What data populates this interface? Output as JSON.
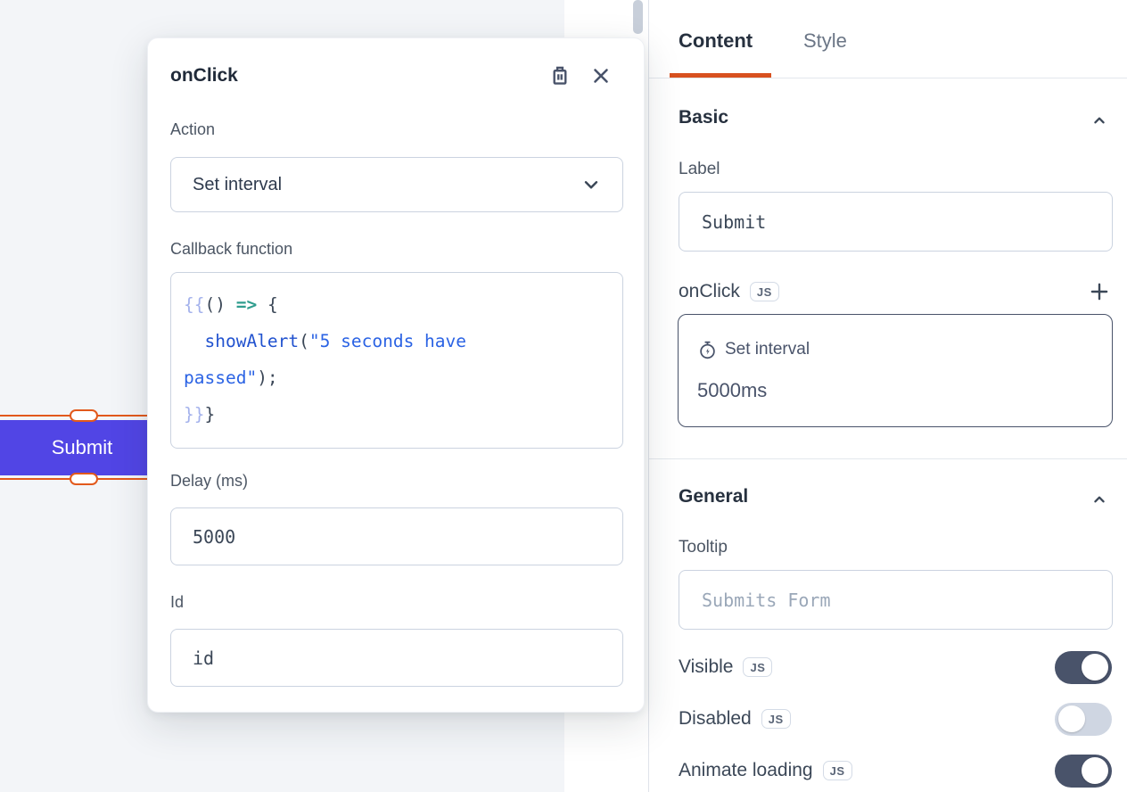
{
  "canvas": {
    "widget": {
      "label": "Submit"
    }
  },
  "popup": {
    "title": "onClick",
    "action": {
      "label": "Action",
      "value": "Set interval"
    },
    "callback": {
      "label": "Callback function",
      "lines": [
        [
          {
            "t": "{{",
            "c": "frame"
          },
          {
            "t": "() ",
            "c": "plain"
          },
          {
            "t": "=>",
            "c": "arrow"
          },
          {
            "t": " {",
            "c": "plain"
          }
        ],
        [
          {
            "t": "  ",
            "c": "plain"
          },
          {
            "t": "showAlert",
            "c": "fn"
          },
          {
            "t": "(",
            "c": "plain"
          },
          {
            "t": "\"5 seconds have",
            "c": "str"
          }
        ],
        [
          {
            "t": "passed\"",
            "c": "str"
          },
          {
            "t": ");",
            "c": "plain"
          }
        ],
        [
          {
            "t": "}}",
            "c": "frame"
          },
          {
            "t": "}",
            "c": "plain"
          }
        ]
      ]
    },
    "delay": {
      "label": "Delay (ms)",
      "value": "5000"
    },
    "id": {
      "label": "Id",
      "value": "id"
    }
  },
  "panel": {
    "tabs": [
      {
        "label": "Content"
      },
      {
        "label": "Style"
      }
    ],
    "basic": {
      "title": "Basic",
      "label_field": {
        "label": "Label",
        "value": "Submit"
      },
      "onclick_row": {
        "label": "onClick",
        "js_badge": "JS"
      },
      "event_card": {
        "action": "Set interval",
        "detail": "5000ms"
      }
    },
    "general": {
      "title": "General",
      "tooltip_field": {
        "label": "Tooltip",
        "placeholder": "Submits Form"
      },
      "toggles": [
        {
          "label": "Visible",
          "js_badge": "JS",
          "on": true
        },
        {
          "label": "Disabled",
          "js_badge": "JS",
          "on": false
        },
        {
          "label": "Animate loading",
          "js_badge": "JS",
          "on": true
        }
      ]
    }
  },
  "icons": [
    "trash-icon",
    "close-icon",
    "chevron-down-icon",
    "chevron-up-icon",
    "plus-icon",
    "stopwatch-icon"
  ],
  "colors": {
    "accent_orange": "#d8511f",
    "selection_orange": "#e2591c",
    "widget_purple": "#5145e5",
    "toggle_on": "#49536a",
    "toggle_off": "#cfd6e2",
    "code_frame": "#a4b2ec",
    "code_arrow": "#2f9d8e",
    "code_function": "#2152cf",
    "code_string": "#2b63e4",
    "canvas_bg": "#f3f5f8"
  }
}
